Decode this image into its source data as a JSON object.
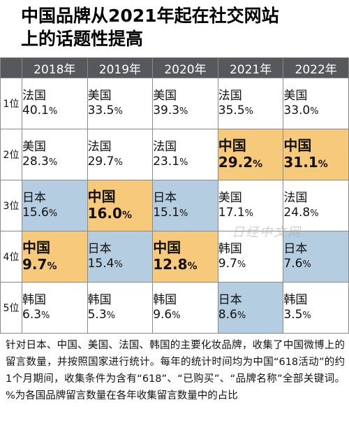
{
  "chart_data": {
    "type": "table",
    "title_lines": [
      "中国品牌从2021年起在社交网站",
      "上的话题性提高"
    ],
    "columns": [
      "2018年",
      "2019年",
      "2020年",
      "2021年",
      "2022年"
    ],
    "rows": [
      {
        "rank": "1位",
        "cells": [
          {
            "country": "法国",
            "value": "40.1",
            "unit": "%"
          },
          {
            "country": "美国",
            "value": "33.5",
            "unit": "%"
          },
          {
            "country": "美国",
            "value": "39.3",
            "unit": "%"
          },
          {
            "country": "法国",
            "value": "35.5",
            "unit": "%"
          },
          {
            "country": "美国",
            "value": "33.0",
            "unit": "%"
          }
        ]
      },
      {
        "rank": "2位",
        "cells": [
          {
            "country": "美国",
            "value": "28.3",
            "unit": "%"
          },
          {
            "country": "法国",
            "value": "29.7",
            "unit": "%"
          },
          {
            "country": "法国",
            "value": "23.1",
            "unit": "%"
          },
          {
            "country": "中国",
            "value": "29.2",
            "unit": "%"
          },
          {
            "country": "中国",
            "value": "31.1",
            "unit": "%"
          }
        ]
      },
      {
        "rank": "3位",
        "cells": [
          {
            "country": "日本",
            "value": "15.6",
            "unit": "%"
          },
          {
            "country": "中国",
            "value": "16.0",
            "unit": "%"
          },
          {
            "country": "日本",
            "value": "15.1",
            "unit": "%"
          },
          {
            "country": "美国",
            "value": "17.1",
            "unit": "%"
          },
          {
            "country": "法国",
            "value": "24.8",
            "unit": "%"
          }
        ]
      },
      {
        "rank": "4位",
        "cells": [
          {
            "country": "中国",
            "value": "9.7",
            "unit": "%"
          },
          {
            "country": "日本",
            "value": "15.4",
            "unit": "%"
          },
          {
            "country": "中国",
            "value": "12.8",
            "unit": "%"
          },
          {
            "country": "韩国",
            "value": "9.7",
            "unit": "%"
          },
          {
            "country": "日本",
            "value": "7.6",
            "unit": "%"
          }
        ]
      },
      {
        "rank": "5位",
        "cells": [
          {
            "country": "韩国",
            "value": "6.3",
            "unit": "%"
          },
          {
            "country": "韩国",
            "value": "5.3",
            "unit": "%"
          },
          {
            "country": "韩国",
            "value": "9.6",
            "unit": "%"
          },
          {
            "country": "日本",
            "value": "8.6",
            "unit": "%"
          },
          {
            "country": "韩国",
            "value": "3.5",
            "unit": "%"
          }
        ]
      }
    ],
    "country_colors": {
      "中国": "#f7c97a",
      "日本": "#b5cde0"
    },
    "default_cell_color": "#ffffff",
    "header_color": "#55595c"
  },
  "note": "针对日本、中国、美国、法国、韩国的主要化妆品牌，收集了中国微博上的留言数量，并按照国家进行统计。每年的统计时间均为中国“618活动”的约1个月期间，收集条件为含有“618”、“已购买”、“品牌名称”全部关键词。%为各国品牌留言数量在各年收集留言数量中的占比",
  "watermark": "日经中文网"
}
